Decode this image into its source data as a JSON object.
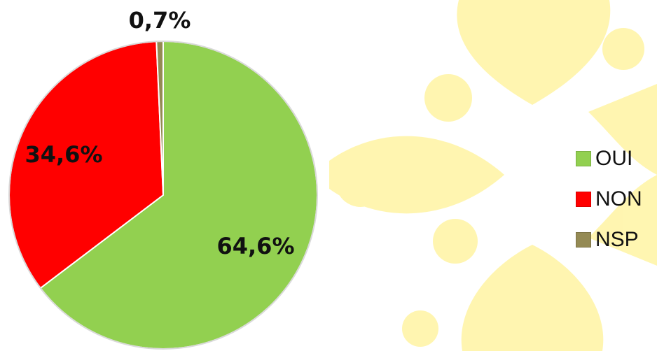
{
  "chart_data": {
    "type": "pie",
    "categories": [
      "OUI",
      "NON",
      "NSP"
    ],
    "values": [
      64.6,
      34.6,
      0.7
    ],
    "data_labels": [
      "64,6%",
      "34,6%",
      "0,7%"
    ],
    "colors": [
      "#92d050",
      "#ff0000",
      "#948a54"
    ],
    "legend_position": "right",
    "start_angle_deg": 0,
    "direction": "clockwise"
  },
  "background": {
    "motif": "occitan-cross",
    "color": "#fff6a8"
  },
  "legend": {
    "items": [
      {
        "label": "OUI",
        "color": "#92d050"
      },
      {
        "label": "NON",
        "color": "#ff0000"
      },
      {
        "label": "NSP",
        "color": "#948a54"
      }
    ]
  }
}
